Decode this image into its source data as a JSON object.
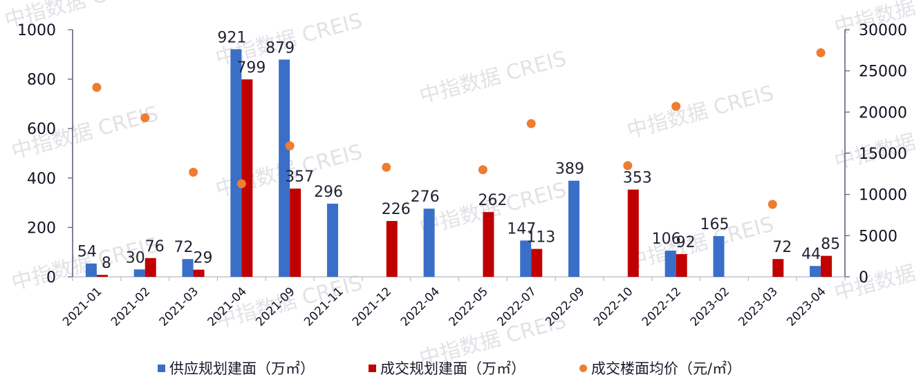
{
  "chart_data": {
    "type": "bar",
    "title": "",
    "xlabel": "",
    "ylabel": "",
    "y2label": "",
    "categories": [
      "2021-01",
      "2021-02",
      "2021-03",
      "2021-04",
      "2021-09",
      "2021-11",
      "2021-12",
      "2022-04",
      "2022-05",
      "2022-07",
      "2022-09",
      "2022-10",
      "2022-12",
      "2023-02",
      "2023-03",
      "2023-04"
    ],
    "series": [
      {
        "name": "供应规划建面（万㎡）",
        "type": "bar",
        "axis": "left",
        "color": "#3a6fc8",
        "values": [
          54,
          30,
          72,
          921,
          879,
          296,
          null,
          276,
          null,
          147,
          389,
          null,
          106,
          165,
          null,
          44
        ]
      },
      {
        "name": "成交规划建面（万㎡）",
        "type": "bar",
        "axis": "left",
        "color": "#c00000",
        "values": [
          8,
          76,
          29,
          799,
          357,
          null,
          226,
          null,
          262,
          113,
          null,
          353,
          92,
          null,
          72,
          85
        ]
      },
      {
        "name": "成交楼面均价（元/㎡）",
        "type": "scatter",
        "axis": "right",
        "color": "#ed7d31",
        "values": [
          23000,
          19300,
          12700,
          11300,
          15900,
          null,
          13300,
          null,
          13000,
          18600,
          null,
          13500,
          20700,
          null,
          8800,
          27200
        ]
      }
    ],
    "ylim": [
      0,
      1000
    ],
    "y_ticks": [
      0,
      200,
      400,
      600,
      800,
      1000
    ],
    "y2lim": [
      0,
      30000
    ],
    "y2_ticks": [
      0,
      5000,
      10000,
      15000,
      20000,
      25000,
      30000
    ],
    "grid": false,
    "legend_position": "bottom",
    "watermark": "中指数据 CREIS"
  },
  "legend": {
    "items": [
      {
        "label": "供应规划建面（万㎡）",
        "color": "#3a6fc8",
        "shape": "square"
      },
      {
        "label": "成交规划建面（万㎡）",
        "color": "#c00000",
        "shape": "square"
      },
      {
        "label": "成交楼面均价（元/㎡）",
        "color": "#ed7d31",
        "shape": "circle"
      }
    ]
  }
}
